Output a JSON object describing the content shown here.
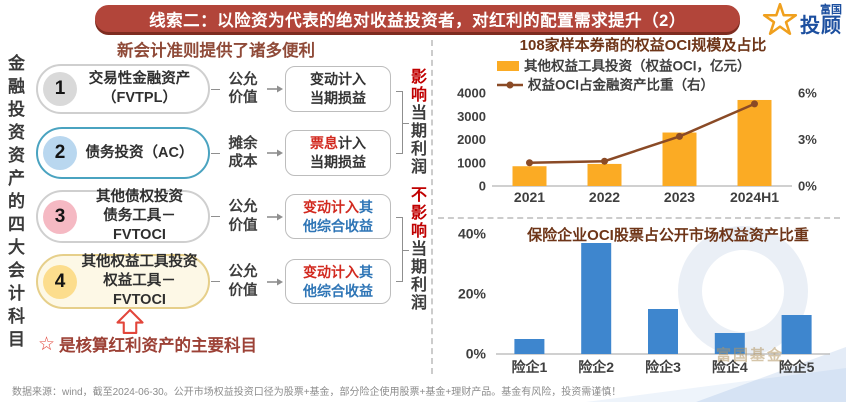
{
  "banner": {
    "title": "线索二：以险资为代表的绝对收益投资者，对红利的配置需求提升（2）"
  },
  "logo": {
    "brand": "富国",
    "product": "投顾"
  },
  "side_label": "金融投资资产的四大会计科目",
  "left_panel": {
    "header": "新会计准则提供了诸多便利",
    "rows": [
      {
        "num": "1",
        "label1": "交易性金融资产",
        "label2": "（FVTPL）",
        "method1": "公允",
        "method2": "价值",
        "box": {
          "l1": "变动计入",
          "l2": "当期损益"
        }
      },
      {
        "num": "2",
        "label1": "债务投资（AC）",
        "label2": "",
        "method1": "摊余",
        "method2": "成本",
        "box": {
          "l1em": "票息",
          "l1": "计入",
          "l2": "当期损益"
        }
      },
      {
        "num": "3",
        "label1": "其他债权投资",
        "label2": "债务工具－FVTOCI",
        "method1": "公允",
        "method2": "价值",
        "box": {
          "l1em": "变动计入",
          "l1b": "其",
          "l2b": "他综合收益"
        }
      },
      {
        "num": "4",
        "label1": "其他权益工具投资",
        "label2": "权益工具－FVTOCI",
        "method1": "公允",
        "method2": "价值",
        "box": {
          "l1em": "变动计入",
          "l1b": "其",
          "l2b": "他综合收益"
        }
      }
    ],
    "impact_profit": {
      "em": "影响",
      "rest": "当期利润"
    },
    "impact_no_profit": {
      "em": "不影响",
      "rest": "当期利润"
    },
    "note": {
      "star": "☆",
      "text": "是核算红利资产的主要科目"
    }
  },
  "footnote": "数据来源：wind，截至2024-06-30。公开市场权益投资口径为股票+基金，部分险企使用股票+基金+理财产品。基金有风险，投资需谨慎！",
  "watermark": "富国基金",
  "theme": {
    "banner_red": "#B2453A",
    "heading_brown": "#8F4A38",
    "chart_title_brown": "#6E3518",
    "accent_red": "#D22A20",
    "accent_blue": "#2E75B6",
    "note_red": "#9C4136",
    "bar_orange": "#FBAB24",
    "line_brown": "#8A4A26",
    "bar_blue": "#3E86CE"
  },
  "chart_data": [
    {
      "type": "bar",
      "title": "108家样本券商的权益OCI规模及占比",
      "categories": [
        "2021",
        "2022",
        "2023",
        "2024H1"
      ],
      "series": [
        {
          "name": "其他权益工具投资（权益OCI，亿元）",
          "type": "bar",
          "axis": "left",
          "color": "#FBAB24",
          "values": [
            850,
            950,
            2300,
            3700
          ]
        },
        {
          "name": "权益OCI占金融资产比重（右）",
          "type": "line",
          "axis": "right",
          "color": "#8A4A26",
          "values": [
            1.5,
            1.6,
            3.2,
            5.3
          ]
        }
      ],
      "left_axis": {
        "min": 0,
        "max": 4000,
        "ticks": [
          0,
          1000,
          2000,
          3000,
          4000
        ]
      },
      "right_axis": {
        "min": 0,
        "max": 6,
        "ticks": [
          0,
          3,
          6
        ],
        "suffix": "%"
      },
      "legend_position": "top",
      "grid": false
    },
    {
      "type": "bar",
      "title": "保险企业OCI股票占公开市场权益资产比重",
      "categories": [
        "险企1",
        "险企2",
        "险企3",
        "险企4",
        "险企5"
      ],
      "values": [
        5,
        37,
        15,
        7,
        13
      ],
      "color": "#3E86CE",
      "y_axis": {
        "min": 0,
        "max": 40,
        "ticks": [
          0,
          20,
          40
        ],
        "suffix": "%"
      },
      "grid": false
    }
  ]
}
